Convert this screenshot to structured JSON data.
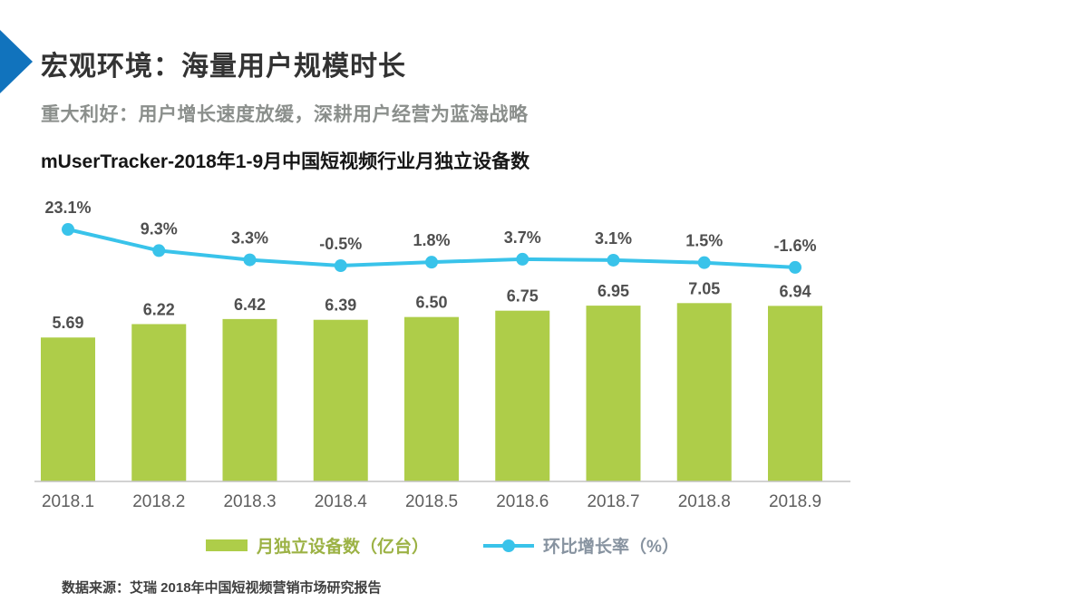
{
  "header": {
    "title": "宏观环境：海量用户规模时长",
    "subtitle": "重大利好：用户增长速度放缓，深耕用户经营为蓝海战略"
  },
  "footer": {
    "source": "数据来源：艾瑞 2018年中国短视频营销市场研究报告"
  },
  "colors": {
    "accent_blue_arrow": "#1173bd",
    "bar_green": "#aecd49",
    "line_cyan": "#39c3ea",
    "axis_gray": "#c4c4c4",
    "label_gray": "#4f4f4f",
    "subtitle_gray": "#8b8f8c"
  },
  "icons": {
    "title_arrow": "right-pointing-triangle"
  },
  "chart_data": {
    "type": "bar",
    "subtype": "bar+line combo, dual axis",
    "title": "mUserTracker-2018年1-9月中国短视频行业月独立设备数",
    "categories": [
      "2018.1",
      "2018.2",
      "2018.3",
      "2018.4",
      "2018.5",
      "2018.6",
      "2018.7",
      "2018.8",
      "2018.9"
    ],
    "series": [
      {
        "name": "月独立设备数（亿台）",
        "type": "bar",
        "values": [
          5.69,
          6.22,
          6.42,
          6.39,
          6.5,
          6.75,
          6.95,
          7.05,
          6.94
        ],
        "labels": [
          "5.69",
          "6.22",
          "6.42",
          "6.39",
          "6.50",
          "6.75",
          "6.95",
          "7.05",
          "6.94"
        ],
        "color": "#aecd49"
      },
      {
        "name": "环比增长率（%）",
        "type": "line",
        "values": [
          23.1,
          9.3,
          3.3,
          -0.5,
          1.8,
          3.7,
          3.1,
          1.5,
          -1.6
        ],
        "labels": [
          "23.1%",
          "9.3%",
          "3.3%",
          "-0.5%",
          "1.8%",
          "3.7%",
          "3.1%",
          "1.5%",
          "-1.6%"
        ],
        "color": "#39c3ea"
      }
    ],
    "xlabel": "",
    "ylabel": "",
    "bar_ylim": [
      0,
      11.7
    ],
    "line_ylim": [
      -141,
      51
    ],
    "grid": false,
    "legend_position": "bottom"
  }
}
